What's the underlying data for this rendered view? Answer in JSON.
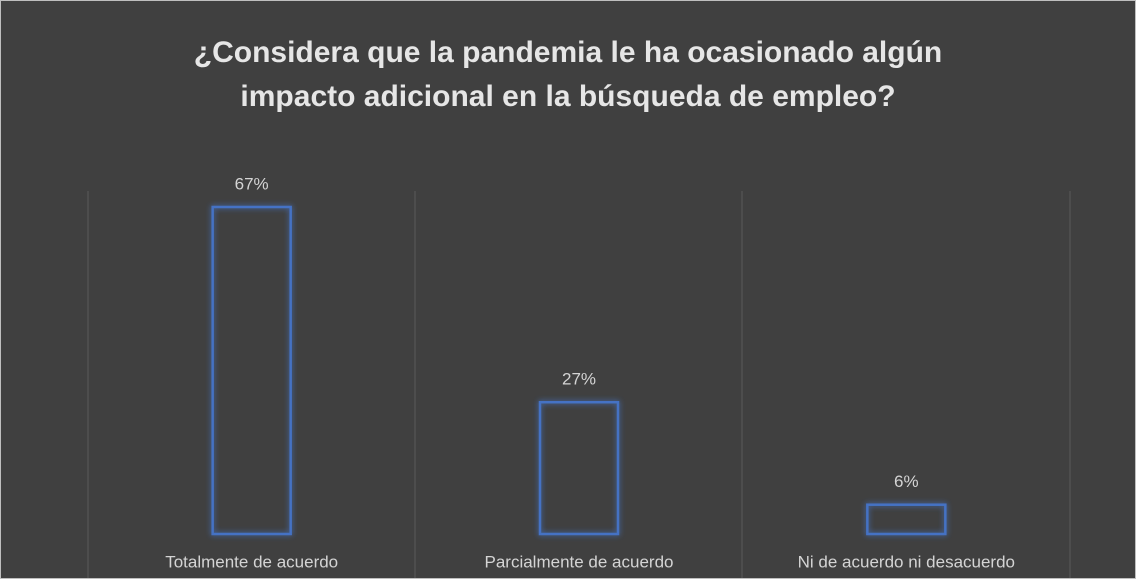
{
  "chart_data": {
    "type": "bar",
    "title": "¿Considera que la pandemia le ha ocasionado algún impacto adicional en la búsqueda de empleo?",
    "categories": [
      "Totalmente de acuerdo",
      "Parcialmente de acuerdo",
      "Ni de acuerdo ni desacuerdo"
    ],
    "values": [
      67,
      27,
      6
    ],
    "value_labels": [
      "67%",
      "27%",
      "6%"
    ],
    "color": "#4472c4"
  }
}
